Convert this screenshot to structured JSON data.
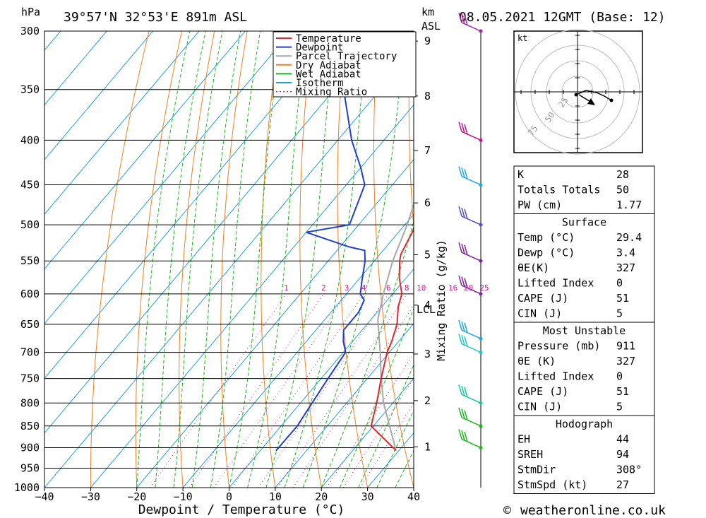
{
  "header": {
    "location": "39°57'N  32°53'E  891m  ASL",
    "datetime": "08.05.2021  12GMT  (Base: 12)",
    "p_unit": "hPa",
    "km_unit": "km",
    "asl_label": "ASL",
    "kt_label": "kt"
  },
  "chart_data": {
    "type": "line",
    "xlabel": "Dewpoint / Temperature (°C)",
    "ylabel": "hPa",
    "y2label": "km ASL",
    "mixing_ratio_axis_label": "Mixing Ratio (g/kg)",
    "xlim": [
      -40,
      40
    ],
    "ylim": [
      1000,
      300
    ],
    "x_ticks": [
      "−40",
      "−30",
      "−20",
      "−10",
      "0",
      "10",
      "20",
      "30",
      "40"
    ],
    "pressure_levels": [
      300,
      350,
      400,
      450,
      500,
      550,
      600,
      650,
      700,
      750,
      800,
      850,
      900,
      950,
      1000
    ],
    "height_ticks_km": [
      "1",
      "2",
      "3",
      "4",
      "5",
      "6",
      "7",
      "8",
      "9"
    ],
    "lcl_label": "LCL",
    "mixing_ratio_labels": [
      "1",
      "2",
      "3",
      "4",
      "6",
      "8",
      "10",
      "16",
      "20",
      "25"
    ],
    "legend": [
      {
        "name": "Temperature",
        "color": "#e0282f",
        "style": "solid"
      },
      {
        "name": "Dewpoint",
        "color": "#1f3fd0",
        "style": "solid"
      },
      {
        "name": "Parcel Trajectory",
        "color": "#a8a8a8",
        "style": "solid"
      },
      {
        "name": "Dry Adiabat",
        "color": "#f08020",
        "style": "solid"
      },
      {
        "name": "Wet Adiabat",
        "color": "#18b818",
        "style": "solid"
      },
      {
        "name": "Isotherm",
        "color": "#20a0e0",
        "style": "solid"
      },
      {
        "name": "Mixing Ratio",
        "color": "#d0208c",
        "style": "dotted"
      }
    ],
    "series": [
      {
        "name": "Temperature",
        "color": "#e0282f",
        "points": [
          [
            907,
            29.4
          ],
          [
            850,
            19.5
          ],
          [
            800,
            16.5
          ],
          [
            750,
            13
          ],
          [
            700,
            9.5
          ],
          [
            680,
            8.5
          ],
          [
            650,
            6.5
          ],
          [
            620,
            3.5
          ],
          [
            600,
            2
          ],
          [
            575,
            -1.5
          ],
          [
            550,
            -4.5
          ],
          [
            540,
            -5.5
          ],
          [
            510,
            -7
          ],
          [
            480,
            -9.5
          ],
          [
            450,
            -12.5
          ],
          [
            420,
            -16
          ],
          [
            400,
            -19
          ],
          [
            380,
            -22.5
          ],
          [
            350,
            -28
          ],
          [
            330,
            -32
          ],
          [
            300,
            -38
          ]
        ]
      },
      {
        "name": "Dewpoint",
        "color": "#1f3fd0",
        "points": [
          [
            907,
            3.4
          ],
          [
            850,
            3.5
          ],
          [
            800,
            2.5
          ],
          [
            750,
            1.5
          ],
          [
            700,
            0.5
          ],
          [
            680,
            -2
          ],
          [
            660,
            -4
          ],
          [
            630,
            -4
          ],
          [
            610,
            -5
          ],
          [
            600,
            -7
          ],
          [
            580,
            -9
          ],
          [
            550,
            -12
          ],
          [
            535,
            -14
          ],
          [
            530,
            -18
          ],
          [
            510,
            -30
          ],
          [
            500,
            -22
          ],
          [
            450,
            -26
          ],
          [
            430,
            -30
          ],
          [
            400,
            -37
          ],
          [
            350,
            -48
          ],
          [
            310,
            -58
          ],
          [
            300,
            -58
          ]
        ]
      },
      {
        "name": "Parcel Trajectory",
        "color": "#a8a8a8",
        "points": [
          [
            907,
            29.4
          ],
          [
            850,
            23.5
          ],
          [
            800,
            18
          ],
          [
            750,
            13
          ],
          [
            700,
            8
          ],
          [
            642,
            1.5
          ],
          [
            600,
            -2
          ],
          [
            550,
            -6
          ],
          [
            500,
            -9.5
          ],
          [
            450,
            -14
          ],
          [
            400,
            -20
          ],
          [
            350,
            -28
          ],
          [
            300,
            -38
          ]
        ]
      }
    ]
  },
  "wind_barbs": [
    {
      "pressure": 300,
      "color": "#a020a0"
    },
    {
      "pressure": 400,
      "color": "#c0108c"
    },
    {
      "pressure": 450,
      "color": "#18a8e8"
    },
    {
      "pressure": 500,
      "color": "#5050c8"
    },
    {
      "pressure": 550,
      "color": "#8020a0"
    },
    {
      "pressure": 600,
      "color": "#8020a0"
    },
    {
      "pressure": 675,
      "color": "#18a8e8"
    },
    {
      "pressure": 700,
      "color": "#18c8c8"
    },
    {
      "pressure": 800,
      "color": "#18c8a0"
    },
    {
      "pressure": 850,
      "color": "#18b818"
    },
    {
      "pressure": 900,
      "color": "#18b818"
    }
  ],
  "hodograph": {
    "rings": [
      "25",
      "50",
      "75"
    ]
  },
  "indices": {
    "top": [
      {
        "label": "K",
        "value": "28"
      },
      {
        "label": "Totals Totals",
        "value": "50"
      },
      {
        "label": "PW (cm)",
        "value": "1.77"
      }
    ],
    "surface": {
      "title": "Surface",
      "rows": [
        {
          "label": "Temp (°C)",
          "value": "29.4"
        },
        {
          "label": "Dewp (°C)",
          "value": "3.4"
        },
        {
          "label": "θE(K)",
          "value": "327"
        },
        {
          "label": "Lifted Index",
          "value": "0"
        },
        {
          "label": "CAPE (J)",
          "value": "51"
        },
        {
          "label": "CIN (J)",
          "value": "5"
        }
      ]
    },
    "most_unstable": {
      "title": "Most Unstable",
      "rows": [
        {
          "label": "Pressure (mb)",
          "value": "911"
        },
        {
          "label": "θE (K)",
          "value": "327"
        },
        {
          "label": "Lifted Index",
          "value": "0"
        },
        {
          "label": "CAPE (J)",
          "value": "51"
        },
        {
          "label": "CIN (J)",
          "value": "5"
        }
      ]
    },
    "hodograph": {
      "title": "Hodograph",
      "rows": [
        {
          "label": "EH",
          "value": "44"
        },
        {
          "label": "SREH",
          "value": "94"
        },
        {
          "label": "StmDir",
          "value": "308°"
        },
        {
          "label": "StmSpd (kt)",
          "value": "27"
        }
      ]
    }
  },
  "footer": {
    "copyright_symbol": "©",
    "site": "weatheronline.co.uk"
  }
}
